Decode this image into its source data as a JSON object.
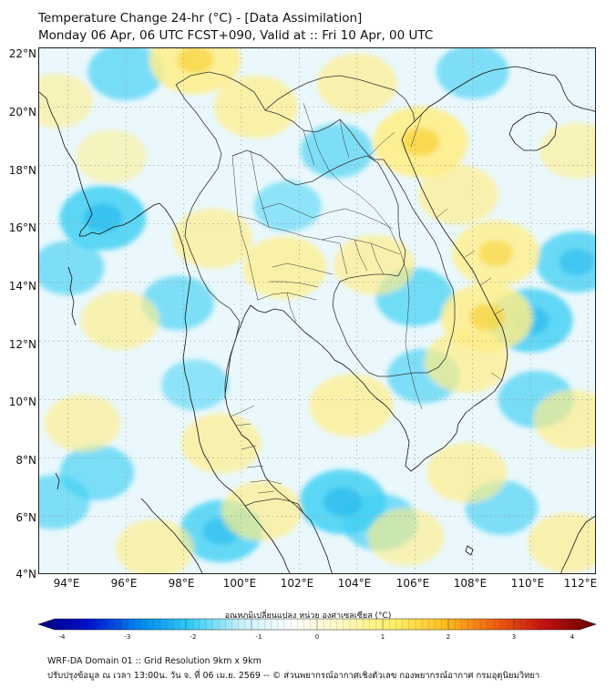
{
  "header": {
    "title_line1": "Temperature Change 24-hr (°C) - [Data Assimilation]",
    "title_line2": "Monday 06 Apr, 06 UTC FCST+090, Valid at :: Fri 10 Apr, 00 UTC"
  },
  "map": {
    "lat_ticks": [
      "22°N",
      "20°N",
      "18°N",
      "16°N",
      "14°N",
      "12°N",
      "10°N",
      "8°N",
      "6°N",
      "4°N"
    ],
    "lon_ticks": [
      "94°E",
      "96°E",
      "98°E",
      "100°E",
      "102°E",
      "104°E",
      "106°E",
      "108°E",
      "110°E",
      "112°E"
    ],
    "lat_range": [
      4,
      22
    ],
    "lon_range": [
      93,
      112.3
    ],
    "warm_blobs": [
      {
        "lon": 98.4,
        "lat": 21.6,
        "amp": 0.9
      },
      {
        "lon": 100.5,
        "lat": 20.0,
        "amp": 0.7
      },
      {
        "lon": 104.0,
        "lat": 20.8,
        "amp": 0.6
      },
      {
        "lon": 106.2,
        "lat": 18.8,
        "amp": 1.0
      },
      {
        "lon": 107.5,
        "lat": 17.0,
        "amp": 0.6
      },
      {
        "lon": 108.8,
        "lat": 15.0,
        "amp": 0.8
      },
      {
        "lon": 108.5,
        "lat": 12.8,
        "amp": 0.9
      },
      {
        "lon": 107.8,
        "lat": 11.3,
        "amp": 0.7
      },
      {
        "lon": 104.6,
        "lat": 14.6,
        "amp": 0.6
      },
      {
        "lon": 101.5,
        "lat": 14.5,
        "amp": 0.7
      },
      {
        "lon": 99.0,
        "lat": 15.5,
        "amp": 0.6
      },
      {
        "lon": 95.8,
        "lat": 12.7,
        "amp": 0.55
      },
      {
        "lon": 94.5,
        "lat": 9.2,
        "amp": 0.5
      },
      {
        "lon": 103.8,
        "lat": 9.8,
        "amp": 0.7
      },
      {
        "lon": 99.3,
        "lat": 8.5,
        "amp": 0.6
      },
      {
        "lon": 100.7,
        "lat": 6.2,
        "amp": 0.6
      },
      {
        "lon": 97.0,
        "lat": 4.9,
        "amp": 0.55
      },
      {
        "lon": 105.7,
        "lat": 5.3,
        "amp": 0.5
      },
      {
        "lon": 107.8,
        "lat": 7.5,
        "amp": 0.6
      },
      {
        "lon": 111.5,
        "lat": 9.3,
        "amp": 0.6
      },
      {
        "lon": 111.3,
        "lat": 5.1,
        "amp": 0.6
      },
      {
        "lon": 111.6,
        "lat": 18.5,
        "amp": 0.45
      },
      {
        "lon": 93.6,
        "lat": 20.2,
        "amp": 0.4
      },
      {
        "lon": 95.5,
        "lat": 18.3,
        "amp": 0.35
      }
    ],
    "cool_blobs": [
      {
        "lon": 96.0,
        "lat": 21.2,
        "amp": 0.6
      },
      {
        "lon": 95.2,
        "lat": 16.2,
        "amp": 0.9
      },
      {
        "lon": 94.0,
        "lat": 14.5,
        "amp": 0.5
      },
      {
        "lon": 97.8,
        "lat": 13.3,
        "amp": 0.5
      },
      {
        "lon": 103.3,
        "lat": 18.5,
        "amp": 0.5
      },
      {
        "lon": 106.0,
        "lat": 13.5,
        "amp": 0.65
      },
      {
        "lon": 110.0,
        "lat": 12.7,
        "amp": 0.85
      },
      {
        "lon": 111.6,
        "lat": 14.7,
        "amp": 0.75
      },
      {
        "lon": 110.2,
        "lat": 10.0,
        "amp": 0.6
      },
      {
        "lon": 106.3,
        "lat": 10.8,
        "amp": 0.5
      },
      {
        "lon": 103.5,
        "lat": 6.5,
        "amp": 0.9
      },
      {
        "lon": 104.8,
        "lat": 5.8,
        "amp": 0.6
      },
      {
        "lon": 99.3,
        "lat": 5.5,
        "amp": 0.8
      },
      {
        "lon": 98.4,
        "lat": 10.5,
        "amp": 0.35
      },
      {
        "lon": 95.0,
        "lat": 7.5,
        "amp": 0.55
      },
      {
        "lon": 93.5,
        "lat": 6.5,
        "amp": 0.5
      },
      {
        "lon": 109.0,
        "lat": 6.3,
        "amp": 0.5
      },
      {
        "lon": 108.0,
        "lat": 21.2,
        "amp": 0.5
      },
      {
        "lon": 101.6,
        "lat": 16.6,
        "amp": 0.35
      }
    ]
  },
  "colorbar": {
    "label": "อุณหภูมิเปลี่ยนแปลง หน่วย องศาเซลเซียส (°C)",
    "ticks": [
      "-4",
      "-3",
      "-2",
      "-1",
      "0",
      "1",
      "2",
      "3",
      "4"
    ],
    "range": [
      -4,
      4
    ],
    "stops": [
      "#00007a",
      "#0010d0",
      "#0088ee",
      "#33ccf5",
      "#c8f0fb",
      "#ffffff",
      "#fff8c0",
      "#fff06a",
      "#ffc020",
      "#f06010",
      "#c01010",
      "#6a0000"
    ]
  },
  "footer": {
    "line1": "WRF-DA Domain 01 :: Grid Resolution 9km x 9km",
    "line2": "ปรับปรุงข้อมูล ณ เวลา 13:00น. วัน จ. ที่ 06 เม.ย. 2569 -- © ส่วนพยากรณ์อากาศเชิงตัวเลข กองพยากรณ์อากาศ กรมอุตุนิยมวิทยา"
  }
}
